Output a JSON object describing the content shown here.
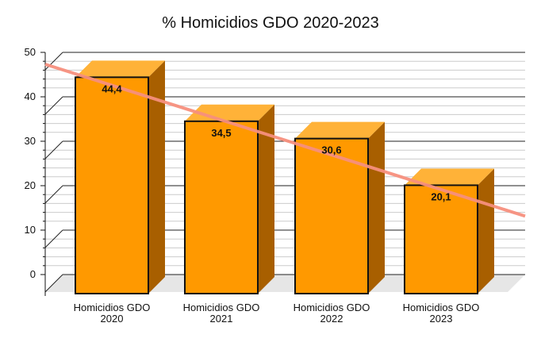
{
  "chart_data": {
    "type": "bar",
    "title": "% Homicidios GDO 2020-2023",
    "categories": [
      [
        "Homicidios GDO",
        "2020"
      ],
      [
        "Homicidios GDO",
        "2021"
      ],
      [
        "Homicidios GDO",
        "2022"
      ],
      [
        "Homicidios GDO",
        "2023"
      ]
    ],
    "values": [
      44.4,
      34.5,
      30.6,
      20.1
    ],
    "data_labels": [
      "44,4",
      "34,5",
      "30,6",
      "20,1"
    ],
    "yticks": [
      "0",
      "10",
      "20",
      "30",
      "40",
      "50"
    ],
    "ylim": [
      0,
      50
    ],
    "grid": true,
    "style": "3d-bar",
    "trendline": {
      "start": 47.5,
      "end": 13.5
    },
    "colors": {
      "bar_front": "#FF9900",
      "bar_top": "#FFB238",
      "bar_side": "#A85F00",
      "trendline": "#F7907E",
      "floor": "#E6E6E6",
      "grid": "#222222",
      "minor_grid": "#CCCCCC"
    }
  }
}
